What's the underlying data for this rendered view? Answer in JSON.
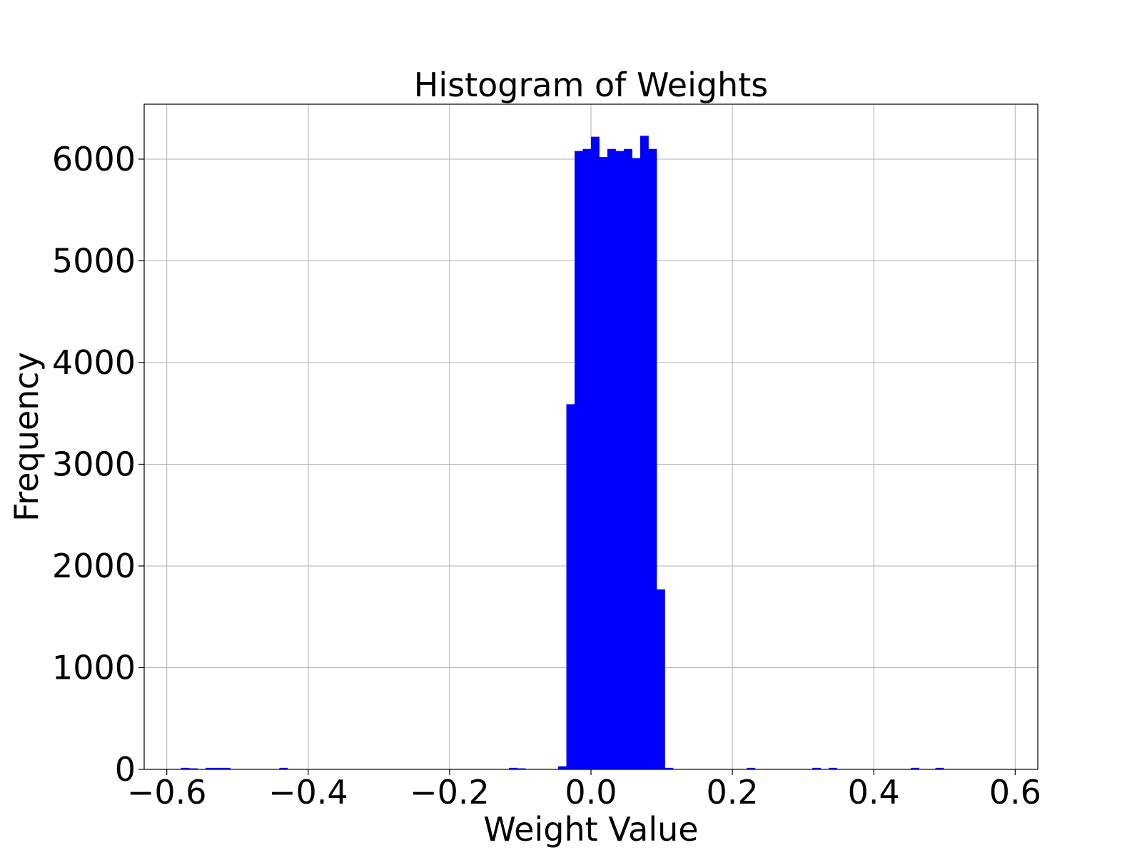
{
  "chart_data": {
    "type": "bar",
    "title": "Histogram of Weights",
    "xlabel": "Weight Value",
    "ylabel": "Frequency",
    "xlim": [
      -0.632,
      0.632
    ],
    "ylim": [
      0,
      6540
    ],
    "grid": true,
    "bar_color": "#0000ff",
    "x_ticks": [
      {
        "value": -0.6,
        "label": "−0.6"
      },
      {
        "value": -0.4,
        "label": "−0.4"
      },
      {
        "value": -0.2,
        "label": "−0.2"
      },
      {
        "value": 0.0,
        "label": "0.0"
      },
      {
        "value": 0.2,
        "label": "0.2"
      },
      {
        "value": 0.4,
        "label": "0.4"
      },
      {
        "value": 0.6,
        "label": "0.6"
      }
    ],
    "y_ticks": [
      {
        "value": 0,
        "label": "0"
      },
      {
        "value": 1000,
        "label": "1000"
      },
      {
        "value": 2000,
        "label": "2000"
      },
      {
        "value": 3000,
        "label": "3000"
      },
      {
        "value": 4000,
        "label": "4000"
      },
      {
        "value": 5000,
        "label": "5000"
      },
      {
        "value": 6000,
        "label": "6000"
      }
    ],
    "bin_start": -0.58,
    "bin_width": 0.0116,
    "values": [
      15,
      10,
      0,
      15,
      15,
      15,
      0,
      0,
      0,
      0,
      0,
      0,
      15,
      0,
      0,
      0,
      0,
      0,
      0,
      0,
      0,
      0,
      0,
      0,
      0,
      0,
      0,
      0,
      0,
      0,
      0,
      0,
      0,
      0,
      0,
      0,
      0,
      0,
      0,
      0,
      15,
      10,
      0,
      0,
      0,
      0,
      30,
      3590,
      6080,
      6100,
      6220,
      6020,
      6100,
      6080,
      6100,
      6010,
      6230,
      6100,
      1770,
      15,
      0,
      0,
      0,
      0,
      0,
      0,
      0,
      0,
      0,
      15,
      0,
      0,
      0,
      0,
      0,
      0,
      0,
      15,
      0,
      15,
      0,
      0,
      0,
      0,
      0,
      0,
      0,
      0,
      0,
      15,
      0,
      0,
      15,
      0,
      0,
      0,
      0,
      0,
      0,
      0
    ]
  }
}
